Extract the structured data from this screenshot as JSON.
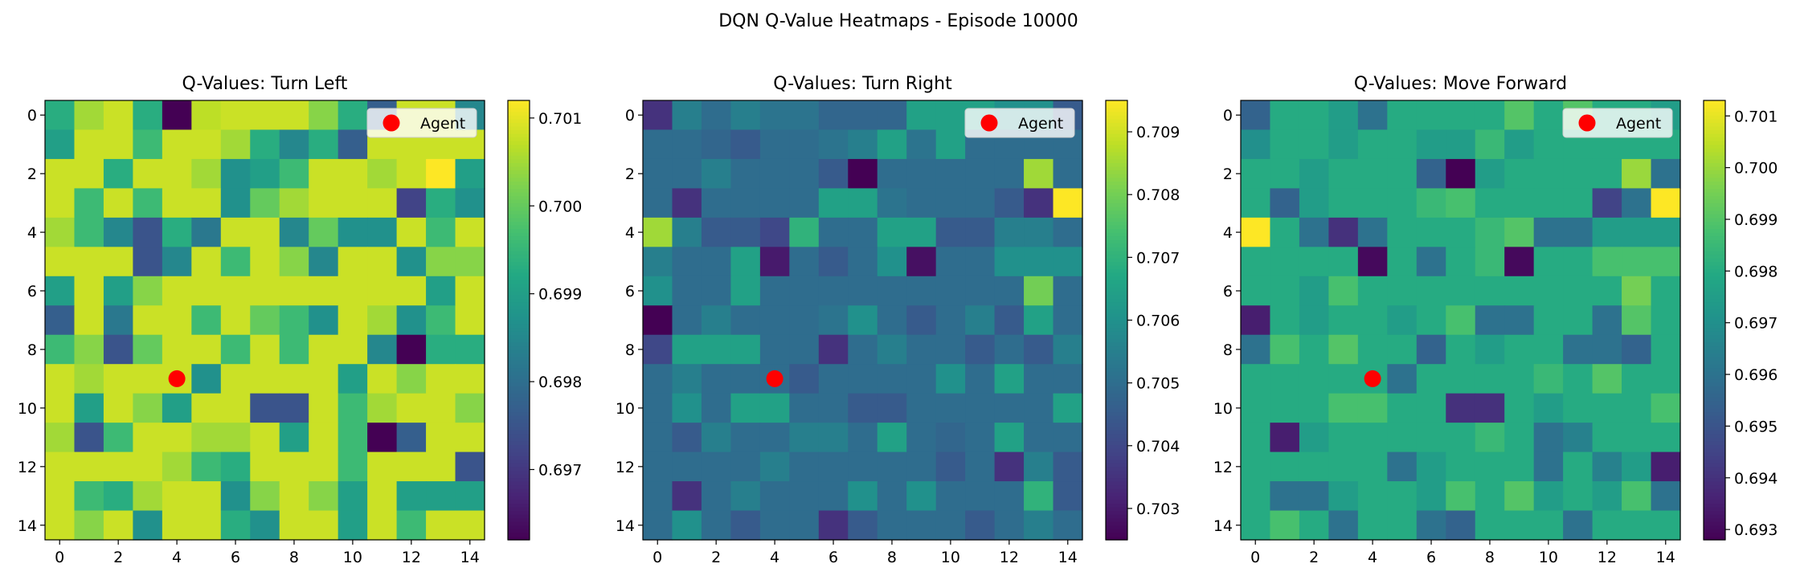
{
  "figure": {
    "title": "DQN Q-Value Heatmaps - Episode 10000"
  },
  "chart_data": [
    {
      "type": "heatmap",
      "title": "Q-Values: Turn Left",
      "xticks": [
        0,
        2,
        4,
        6,
        8,
        10,
        12,
        14
      ],
      "yticks": [
        0,
        2,
        4,
        6,
        8,
        10,
        12,
        14
      ],
      "colorbar": {
        "min": 0.6962,
        "max": 0.7012,
        "ticks": [
          0.697,
          0.698,
          0.699,
          0.7,
          0.701
        ],
        "tick_labels": [
          "0.697",
          "0.698",
          "0.699",
          "0.700",
          "0.701"
        ]
      },
      "legend": {
        "label": "Agent",
        "placement": "top-right"
      },
      "agent": {
        "x": 4,
        "y": 9
      },
      "values": [
        [
          0.6993,
          0.7005,
          0.7008,
          0.6993,
          0.6962,
          0.7007,
          0.7008,
          0.7008,
          0.7008,
          0.7003,
          0.6993,
          0.6977,
          0.7008,
          0.7008,
          0.6985
        ],
        [
          0.699,
          0.7008,
          0.7008,
          0.6996,
          0.7008,
          0.7008,
          0.7005,
          0.6993,
          0.6985,
          0.6993,
          0.6977,
          0.7008,
          0.7008,
          0.7008,
          0.7008
        ],
        [
          0.7008,
          0.7008,
          0.6993,
          0.7008,
          0.7008,
          0.7005,
          0.6987,
          0.699,
          0.6996,
          0.7008,
          0.7008,
          0.7005,
          0.7008,
          0.7012,
          0.699
        ],
        [
          0.7008,
          0.6996,
          0.7008,
          0.6996,
          0.7008,
          0.7008,
          0.6987,
          0.7,
          0.7005,
          0.7008,
          0.7008,
          0.7008,
          0.6972,
          0.6993,
          0.6987
        ],
        [
          0.7005,
          0.6996,
          0.6985,
          0.6975,
          0.6993,
          0.6982,
          0.7008,
          0.7008,
          0.6985,
          0.7,
          0.6987,
          0.6987,
          0.7008,
          0.6996,
          0.7008
        ],
        [
          0.7008,
          0.7008,
          0.7008,
          0.6975,
          0.6985,
          0.7008,
          0.6996,
          0.7008,
          0.7003,
          0.6985,
          0.7008,
          0.7008,
          0.6987,
          0.7003,
          0.7003
        ],
        [
          0.699,
          0.7008,
          0.699,
          0.7003,
          0.7008,
          0.7008,
          0.7008,
          0.7008,
          0.7008,
          0.7008,
          0.7008,
          0.7008,
          0.7008,
          0.699,
          0.7008
        ],
        [
          0.6977,
          0.7008,
          0.6982,
          0.7008,
          0.7008,
          0.6996,
          0.7008,
          0.7,
          0.6996,
          0.6987,
          0.7008,
          0.7005,
          0.6987,
          0.6996,
          0.7008
        ],
        [
          0.6996,
          0.7003,
          0.6975,
          0.7,
          0.7008,
          0.7008,
          0.6996,
          0.7008,
          0.6996,
          0.7008,
          0.7008,
          0.6985,
          0.6962,
          0.6993,
          0.6993
        ],
        [
          0.7008,
          0.7005,
          0.7008,
          0.7008,
          0.7008,
          0.6987,
          0.7008,
          0.7008,
          0.7008,
          0.7008,
          0.699,
          0.7008,
          0.7003,
          0.7008,
          0.7008
        ],
        [
          0.7008,
          0.699,
          0.7008,
          0.7003,
          0.699,
          0.7008,
          0.7008,
          0.6975,
          0.6975,
          0.7008,
          0.6996,
          0.7005,
          0.7008,
          0.7008,
          0.7003
        ],
        [
          0.7005,
          0.6975,
          0.6996,
          0.7008,
          0.7008,
          0.7005,
          0.7005,
          0.7008,
          0.699,
          0.7008,
          0.6996,
          0.6962,
          0.6977,
          0.7008,
          0.7008
        ],
        [
          0.7008,
          0.7008,
          0.7008,
          0.7008,
          0.7005,
          0.6996,
          0.6993,
          0.7008,
          0.7008,
          0.7008,
          0.6996,
          0.7008,
          0.7008,
          0.7008,
          0.6975
        ],
        [
          0.7008,
          0.6996,
          0.6993,
          0.7005,
          0.7008,
          0.7008,
          0.6987,
          0.7003,
          0.7008,
          0.7003,
          0.699,
          0.7008,
          0.699,
          0.699,
          0.699
        ],
        [
          0.7008,
          0.7003,
          0.7008,
          0.6987,
          0.7008,
          0.7008,
          0.6993,
          0.6987,
          0.7008,
          0.7008,
          0.699,
          0.7008,
          0.6996,
          0.7008,
          0.7008
        ]
      ]
    },
    {
      "type": "heatmap",
      "title": "Q-Values: Turn Right",
      "xticks": [
        0,
        2,
        4,
        6,
        8,
        10,
        12,
        14
      ],
      "yticks": [
        0,
        2,
        4,
        6,
        8,
        10,
        12,
        14
      ],
      "colorbar": {
        "min": 0.7025,
        "max": 0.7095,
        "ticks": [
          0.703,
          0.704,
          0.705,
          0.706,
          0.707,
          0.708,
          0.709
        ],
        "tick_labels": [
          "0.703",
          "0.704",
          "0.705",
          "0.706",
          "0.707",
          "0.708",
          "0.709"
        ]
      },
      "legend": {
        "label": "Agent",
        "placement": "top-right"
      },
      "agent": {
        "x": 4,
        "y": 9
      },
      "values": [
        [
          0.7035,
          0.7055,
          0.705,
          0.7055,
          0.7052,
          0.7052,
          0.7048,
          0.7048,
          0.7048,
          0.7065,
          0.7065,
          0.7065,
          0.706,
          0.706,
          0.7045
        ],
        [
          0.705,
          0.705,
          0.7048,
          0.7045,
          0.705,
          0.705,
          0.7052,
          0.7055,
          0.7065,
          0.7052,
          0.7065,
          0.705,
          0.705,
          0.705,
          0.705
        ],
        [
          0.705,
          0.705,
          0.7055,
          0.705,
          0.705,
          0.705,
          0.7045,
          0.7025,
          0.705,
          0.705,
          0.705,
          0.705,
          0.705,
          0.7085,
          0.705
        ],
        [
          0.705,
          0.7035,
          0.705,
          0.705,
          0.705,
          0.705,
          0.7065,
          0.7065,
          0.7052,
          0.705,
          0.705,
          0.705,
          0.7045,
          0.7035,
          0.7095
        ],
        [
          0.7085,
          0.7055,
          0.7045,
          0.7045,
          0.704,
          0.707,
          0.705,
          0.705,
          0.7065,
          0.7065,
          0.7045,
          0.7045,
          0.7055,
          0.7055,
          0.705
        ],
        [
          0.7055,
          0.705,
          0.705,
          0.7065,
          0.703,
          0.705,
          0.7045,
          0.705,
          0.706,
          0.7028,
          0.705,
          0.705,
          0.706,
          0.706,
          0.706
        ],
        [
          0.706,
          0.705,
          0.705,
          0.7065,
          0.705,
          0.705,
          0.705,
          0.705,
          0.705,
          0.705,
          0.705,
          0.705,
          0.705,
          0.708,
          0.705
        ],
        [
          0.7025,
          0.705,
          0.7055,
          0.705,
          0.705,
          0.705,
          0.7052,
          0.706,
          0.705,
          0.7045,
          0.705,
          0.7055,
          0.7045,
          0.7065,
          0.705
        ],
        [
          0.704,
          0.7065,
          0.7065,
          0.7065,
          0.705,
          0.705,
          0.7035,
          0.705,
          0.7055,
          0.705,
          0.705,
          0.7045,
          0.705,
          0.7045,
          0.7055
        ],
        [
          0.705,
          0.7055,
          0.705,
          0.705,
          0.705,
          0.7045,
          0.705,
          0.705,
          0.705,
          0.705,
          0.706,
          0.705,
          0.7065,
          0.705,
          0.705
        ],
        [
          0.705,
          0.706,
          0.705,
          0.7065,
          0.7065,
          0.705,
          0.705,
          0.7045,
          0.7045,
          0.705,
          0.705,
          0.705,
          0.705,
          0.705,
          0.7065
        ],
        [
          0.705,
          0.7045,
          0.7055,
          0.705,
          0.705,
          0.7055,
          0.7055,
          0.705,
          0.7065,
          0.705,
          0.7048,
          0.705,
          0.7065,
          0.705,
          0.705
        ],
        [
          0.705,
          0.705,
          0.705,
          0.705,
          0.7055,
          0.705,
          0.705,
          0.705,
          0.705,
          0.705,
          0.7045,
          0.705,
          0.7035,
          0.7055,
          0.7045
        ],
        [
          0.705,
          0.7035,
          0.705,
          0.7055,
          0.705,
          0.705,
          0.705,
          0.706,
          0.705,
          0.706,
          0.705,
          0.705,
          0.705,
          0.707,
          0.7045
        ],
        [
          0.705,
          0.706,
          0.705,
          0.7045,
          0.705,
          0.705,
          0.7035,
          0.7045,
          0.705,
          0.705,
          0.705,
          0.7045,
          0.705,
          0.7055,
          0.705
        ]
      ]
    },
    {
      "type": "heatmap",
      "title": "Q-Values: Move Forward",
      "xticks": [
        0,
        2,
        4,
        6,
        8,
        10,
        12,
        14
      ],
      "yticks": [
        0,
        2,
        4,
        6,
        8,
        10,
        12,
        14
      ],
      "colorbar": {
        "min": 0.6928,
        "max": 0.7013,
        "ticks": [
          0.693,
          0.694,
          0.695,
          0.696,
          0.697,
          0.698,
          0.699,
          0.7,
          0.701
        ],
        "tick_labels": [
          "0.693",
          "0.694",
          "0.695",
          "0.696",
          "0.697",
          "0.698",
          "0.699",
          "0.700",
          "0.701"
        ]
      },
      "legend": {
        "label": "Agent",
        "placement": "top-right"
      },
      "agent": {
        "x": 4,
        "y": 9
      },
      "values": [
        [
          0.6955,
          0.698,
          0.698,
          0.6975,
          0.696,
          0.698,
          0.698,
          0.698,
          0.698,
          0.699,
          0.698,
          0.699,
          0.698,
          0.698,
          0.6975
        ],
        [
          0.697,
          0.698,
          0.698,
          0.6975,
          0.698,
          0.698,
          0.6975,
          0.6975,
          0.6985,
          0.6975,
          0.698,
          0.698,
          0.698,
          0.698,
          0.698
        ],
        [
          0.698,
          0.698,
          0.6975,
          0.698,
          0.698,
          0.698,
          0.6955,
          0.6928,
          0.6975,
          0.698,
          0.698,
          0.698,
          0.698,
          0.7,
          0.696
        ],
        [
          0.698,
          0.6955,
          0.6975,
          0.698,
          0.698,
          0.698,
          0.6985,
          0.6988,
          0.698,
          0.698,
          0.698,
          0.698,
          0.6945,
          0.696,
          0.7013
        ],
        [
          0.7013,
          0.698,
          0.696,
          0.694,
          0.696,
          0.698,
          0.698,
          0.698,
          0.6985,
          0.699,
          0.696,
          0.696,
          0.6975,
          0.6975,
          0.6975
        ],
        [
          0.698,
          0.698,
          0.698,
          0.698,
          0.693,
          0.698,
          0.696,
          0.698,
          0.6985,
          0.693,
          0.698,
          0.698,
          0.6988,
          0.6988,
          0.6988
        ],
        [
          0.698,
          0.698,
          0.6975,
          0.6988,
          0.698,
          0.698,
          0.698,
          0.698,
          0.698,
          0.698,
          0.698,
          0.698,
          0.698,
          0.6995,
          0.698
        ],
        [
          0.6935,
          0.698,
          0.6975,
          0.698,
          0.698,
          0.6975,
          0.698,
          0.6988,
          0.696,
          0.696,
          0.698,
          0.698,
          0.696,
          0.699,
          0.698
        ],
        [
          0.696,
          0.6988,
          0.698,
          0.699,
          0.698,
          0.698,
          0.6955,
          0.698,
          0.6975,
          0.698,
          0.698,
          0.696,
          0.696,
          0.6955,
          0.698
        ],
        [
          0.698,
          0.698,
          0.698,
          0.698,
          0.698,
          0.696,
          0.698,
          0.698,
          0.698,
          0.698,
          0.6985,
          0.698,
          0.699,
          0.698,
          0.698
        ],
        [
          0.698,
          0.698,
          0.698,
          0.6988,
          0.6988,
          0.698,
          0.698,
          0.694,
          0.694,
          0.698,
          0.6975,
          0.698,
          0.698,
          0.698,
          0.6988
        ],
        [
          0.698,
          0.6935,
          0.6975,
          0.698,
          0.698,
          0.698,
          0.698,
          0.698,
          0.6985,
          0.698,
          0.696,
          0.6965,
          0.698,
          0.698,
          0.698
        ],
        [
          0.698,
          0.698,
          0.698,
          0.698,
          0.698,
          0.696,
          0.6975,
          0.698,
          0.698,
          0.698,
          0.696,
          0.698,
          0.6965,
          0.6975,
          0.6935
        ],
        [
          0.698,
          0.696,
          0.696,
          0.6975,
          0.698,
          0.698,
          0.6975,
          0.6988,
          0.698,
          0.699,
          0.6975,
          0.698,
          0.6975,
          0.6988,
          0.696
        ],
        [
          0.698,
          0.6988,
          0.698,
          0.696,
          0.698,
          0.698,
          0.696,
          0.6955,
          0.698,
          0.698,
          0.698,
          0.696,
          0.698,
          0.698,
          0.698
        ]
      ]
    }
  ]
}
